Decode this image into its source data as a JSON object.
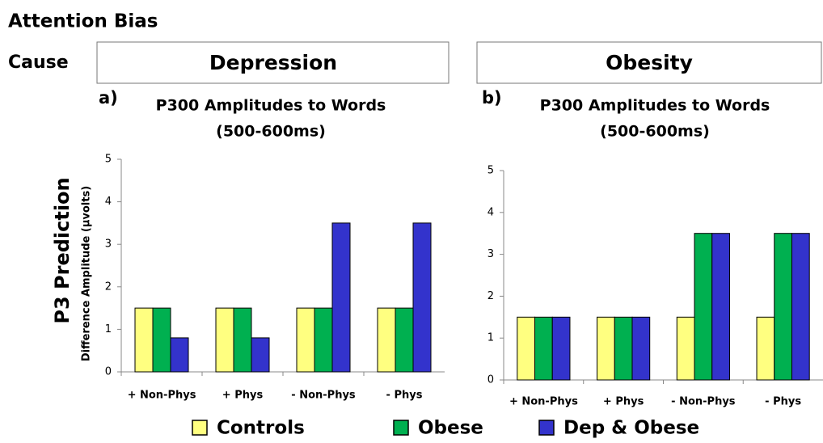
{
  "header": {
    "title": "Attention Bias",
    "row_label": "Cause",
    "y_section_label": "P3 Prediction",
    "columns": [
      "Depression",
      "Obesity"
    ]
  },
  "chart_data": [
    {
      "type": "bar",
      "panel_label": "a)",
      "title": "P300 Amplitudes to Words",
      "subtitle": "(500-600ms)",
      "y_label": "Difference Amplitude (μvolts)",
      "categories": [
        "+ Non-Phys",
        "+ Phys",
        "- Non-Phys",
        "- Phys"
      ],
      "series": [
        {
          "name": "Controls",
          "color": "#ffff80",
          "values": [
            1.5,
            1.5,
            1.5,
            1.5
          ]
        },
        {
          "name": "Obese",
          "color": "#00b050",
          "values": [
            1.5,
            1.5,
            1.5,
            1.5
          ]
        },
        {
          "name": "Dep & Obese",
          "color": "#3333cc",
          "values": [
            0.8,
            0.8,
            3.5,
            3.5
          ]
        }
      ],
      "ylim": [
        0,
        5
      ],
      "yticks": [
        0,
        1,
        2,
        3,
        4,
        5
      ]
    },
    {
      "type": "bar",
      "panel_label": "b)",
      "title": "P300 Amplitudes to Words",
      "subtitle": "(500-600ms)",
      "categories": [
        "+ Non-Phys",
        "+ Phys",
        "- Non-Phys",
        "- Phys"
      ],
      "series": [
        {
          "color": "#ffff80",
          "values": [
            1.5,
            1.5,
            1.5,
            1.5
          ]
        },
        {
          "color": "#00b050",
          "values": [
            1.5,
            1.5,
            3.5,
            3.5
          ]
        },
        {
          "color": "#3333cc",
          "values": [
            1.5,
            1.5,
            3.5,
            3.5
          ]
        }
      ],
      "ylim": [
        0,
        5
      ],
      "yticks": [
        0,
        1,
        2,
        3,
        4,
        5
      ]
    }
  ]
}
